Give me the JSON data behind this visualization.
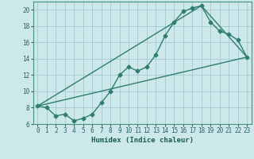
{
  "xlabel": "Humidex (Indice chaleur)",
  "ylabel": "",
  "bg_color": "#cce8ea",
  "grid_color": "#a8cdd0",
  "line_color": "#2e7d6e",
  "xlim": [
    -0.5,
    23.5
  ],
  "ylim": [
    6,
    21
  ],
  "xticks": [
    0,
    1,
    2,
    3,
    4,
    5,
    6,
    7,
    8,
    9,
    10,
    11,
    12,
    13,
    14,
    15,
    16,
    17,
    18,
    19,
    20,
    21,
    22,
    23
  ],
  "yticks": [
    6,
    8,
    10,
    12,
    14,
    16,
    18,
    20
  ],
  "line1_x": [
    0,
    1,
    2,
    3,
    4,
    5,
    6,
    7,
    8,
    9,
    10,
    11,
    12,
    13,
    14,
    15,
    16,
    17,
    18,
    19,
    20,
    21,
    22,
    23
  ],
  "line1_y": [
    8.2,
    8.0,
    7.0,
    7.2,
    6.4,
    6.7,
    7.2,
    8.6,
    10.0,
    12.0,
    13.0,
    12.5,
    13.0,
    14.5,
    16.8,
    18.5,
    19.8,
    20.2,
    20.5,
    18.5,
    17.4,
    17.0,
    16.3,
    14.2
  ],
  "line2_x": [
    0,
    23
  ],
  "line2_y": [
    8.2,
    14.2
  ],
  "line3_x": [
    0,
    18,
    23
  ],
  "line3_y": [
    8.2,
    20.5,
    14.2
  ]
}
